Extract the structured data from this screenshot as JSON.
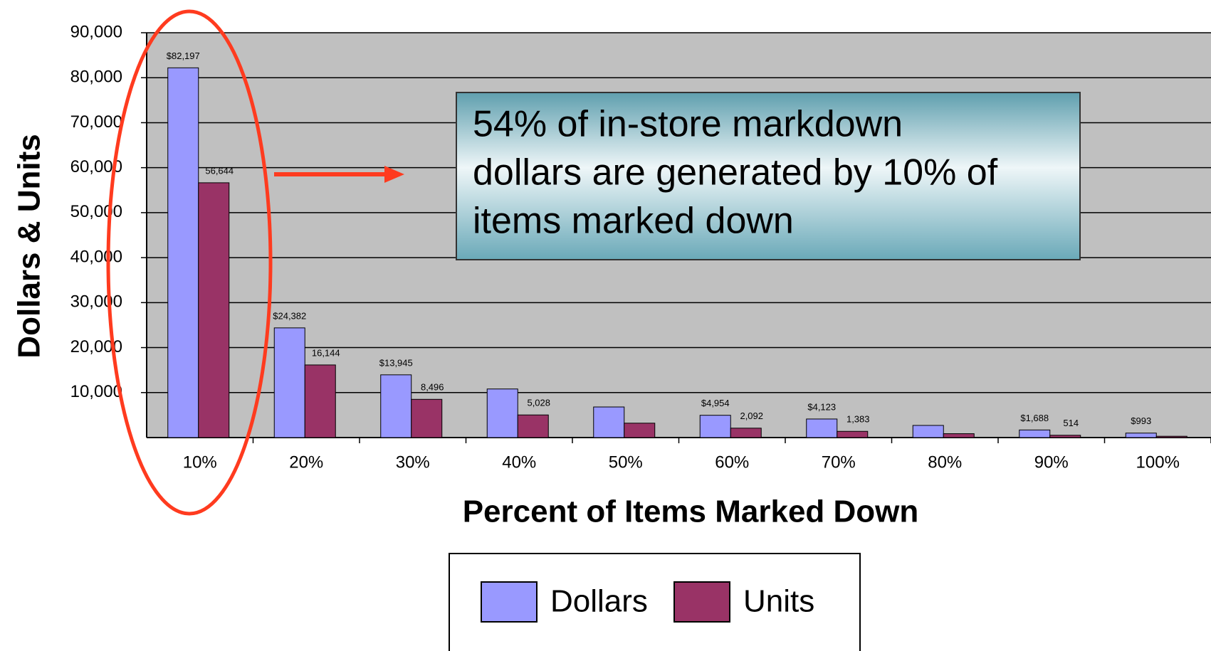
{
  "chart_data": {
    "type": "bar",
    "x_label": "Percent of Items Marked Down",
    "y_label": "Dollars & Units",
    "annotation": [
      "54% of in-store markdown",
      "dollars are generated by 10% of",
      "items marked down"
    ],
    "categories": [
      "10%",
      "20%",
      "30%",
      "40%",
      "50%",
      "60%",
      "70%",
      "80%",
      "90%",
      "100%"
    ],
    "series": [
      {
        "name": "Dollars",
        "color": "#9999ff",
        "values": [
          82197,
          24382,
          13945,
          10800,
          6800,
          4954,
          4123,
          2700,
          1688,
          993
        ],
        "value_labels": [
          "$82,197",
          "$24,382",
          "$13,945",
          null,
          null,
          "$4,954",
          "$4,123",
          null,
          "$1,688",
          "$993"
        ]
      },
      {
        "name": "Units",
        "color": "#993366",
        "values": [
          56644,
          16144,
          8496,
          5028,
          3200,
          2092,
          1383,
          861,
          514,
          287
        ],
        "value_labels": [
          "56,644",
          "16,144",
          "8,496",
          "5,028",
          null,
          "2,092",
          "1,383",
          null,
          "514",
          null
        ]
      }
    ],
    "ylim": [
      0,
      90000
    ],
    "yticks": [
      {
        "value": 10000,
        "label": "10,000"
      },
      {
        "value": 20000,
        "label": "20,000"
      },
      {
        "value": 30000,
        "label": "30,000"
      },
      {
        "value": 40000,
        "label": "40,000"
      },
      {
        "value": 50000,
        "label": "50,000"
      },
      {
        "value": 60000,
        "label": "60,000"
      },
      {
        "value": 70000,
        "label": "70,000"
      },
      {
        "value": 80000,
        "label": "80,000"
      },
      {
        "value": 90000,
        "label": "90,000"
      }
    ],
    "grid": true
  }
}
